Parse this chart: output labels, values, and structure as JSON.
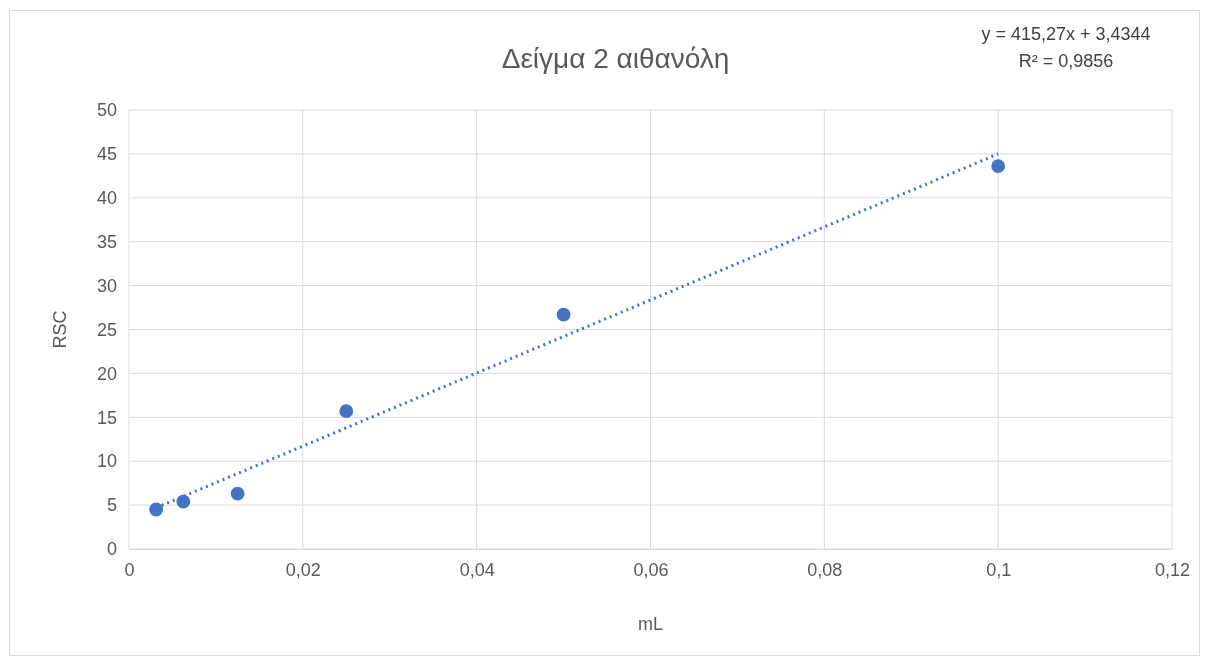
{
  "chart_data": {
    "type": "scatter",
    "title": "Δείγμα 2 αιθανόλη",
    "xlabel": "mL",
    "ylabel": "RSC",
    "annotations": [
      "y = 415,27x + 3,4344",
      "R² = 0,9856"
    ],
    "series": [
      {
        "color": "#4472c4",
        "marker": "circle",
        "x": [
          0.003125,
          0.00625,
          0.0125,
          0.025,
          0.05,
          0.1
        ],
        "values": [
          4.5,
          5.4,
          6.3,
          15.7,
          26.7,
          43.6
        ]
      },
      {
        "type": "line",
        "color": "#4472c4",
        "line_style": "dotted",
        "x": [
          0.003125,
          0.1
        ],
        "values": [
          4.7,
          45.0
        ]
      }
    ],
    "xlim": [
      0,
      0.12
    ],
    "xticks": [
      0,
      {
        "value": 0.02,
        "label": "0,02"
      },
      {
        "value": 0.04,
        "label": "0,04"
      },
      {
        "value": 0.06,
        "label": "0,06"
      },
      {
        "value": 0.08,
        "label": "0,08"
      },
      {
        "value": 0.1,
        "label": "0,1"
      },
      {
        "value": 0.12,
        "label": "0,12"
      }
    ],
    "ylim": [
      0,
      50
    ],
    "yticks": [
      0,
      5,
      10,
      15,
      20,
      25,
      30,
      35,
      40,
      45,
      50
    ],
    "grid": true
  }
}
